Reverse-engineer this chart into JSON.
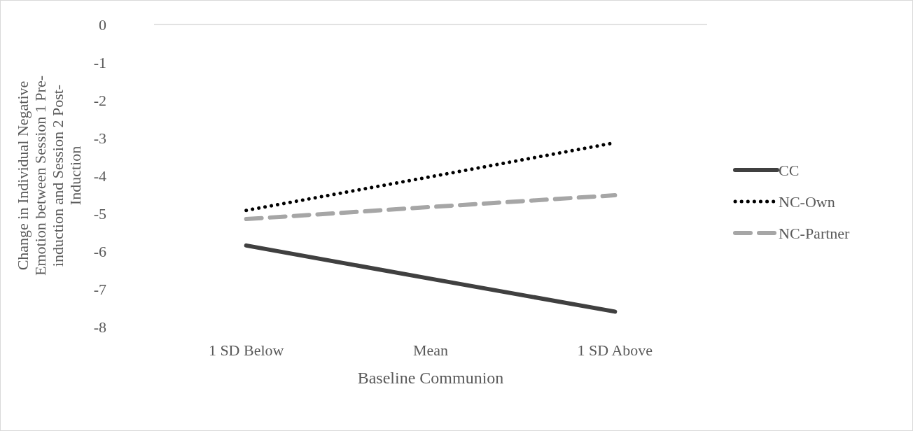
{
  "chart_data": {
    "type": "line",
    "xlabel": "Baseline Communion",
    "ylabel": "Change in Individual Negative Emotion between Session 1 Pre-induction and Session 2 Post-Induction",
    "categories": [
      "1 SD Below",
      "Mean",
      "1 SD Above"
    ],
    "series": [
      {
        "name": "CC",
        "color": "#404040",
        "values": [
          -5.85,
          -6.73,
          -7.6
        ],
        "line_style": "solid"
      },
      {
        "name": "NC-Own",
        "color": "#000000",
        "values": [
          -4.92,
          -4.03,
          -3.13
        ],
        "line_style": "dotted"
      },
      {
        "name": "NC-Partner",
        "color": "#a6a6a6",
        "values": [
          -5.15,
          -4.83,
          -4.52
        ],
        "line_style": "dashed"
      }
    ],
    "ylim": [
      -8,
      0
    ],
    "yticks": [
      -8,
      -7,
      -6,
      -5,
      -4,
      -3,
      -2,
      -1,
      0
    ],
    "ref_lines": [
      {
        "axis": "y",
        "value": 0,
        "color": "#d9d9d9"
      }
    ],
    "grid": false,
    "legend": "right"
  }
}
